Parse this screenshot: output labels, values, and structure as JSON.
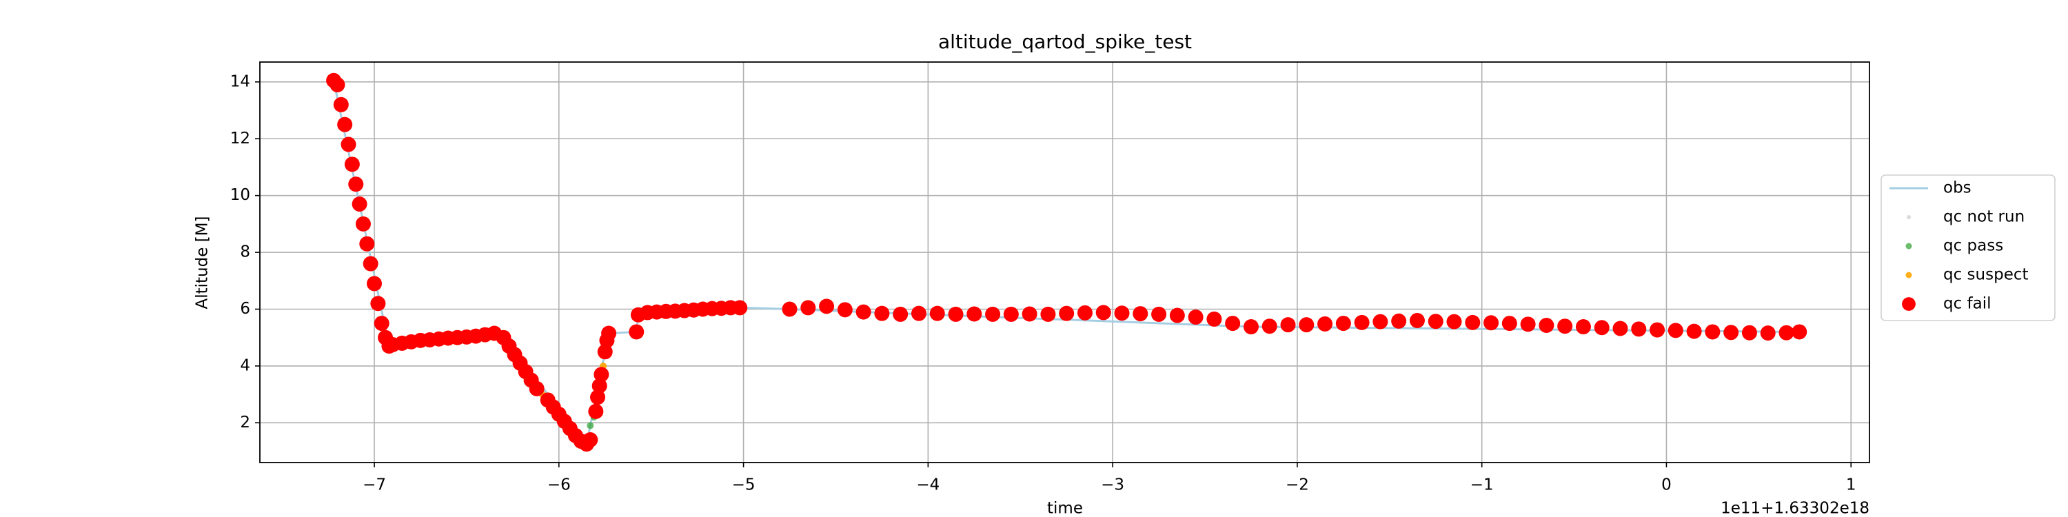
{
  "chart_data": {
    "type": "scatter",
    "title": "altitude_qartod_spike_test",
    "x_label": "time",
    "y_label": "Altitude [M]",
    "x_offset_text": "1e11+1.63302e18",
    "xlim": [
      -7.62,
      1.1
    ],
    "ylim": [
      0.6,
      14.7
    ],
    "xticks": [
      {
        "value": -7,
        "label": "−7"
      },
      {
        "value": -6,
        "label": "−6"
      },
      {
        "value": -5,
        "label": "−5"
      },
      {
        "value": -4,
        "label": "−4"
      },
      {
        "value": -3,
        "label": "−3"
      },
      {
        "value": -2,
        "label": "−2"
      },
      {
        "value": -1,
        "label": "−1"
      },
      0,
      1
    ],
    "yticks": [
      2,
      4,
      6,
      8,
      10,
      12,
      14
    ],
    "grid": true,
    "legend": "right",
    "series": [
      {
        "name": "obs",
        "color": "#a6cee3",
        "x": [
          -7.22,
          -6.92,
          -6.3,
          -5.85,
          -5.73,
          -5.58,
          -5.57,
          -5.0,
          -4.75,
          -2.25,
          0.72
        ],
        "values": [
          14.05,
          4.7,
          5.0,
          1.25,
          5.15,
          5.2,
          5.8,
          6.05,
          6.0,
          5.38,
          5.2
        ]
      },
      {
        "name": "qc not run",
        "color": "#cccccc",
        "x": [],
        "values": []
      },
      {
        "name": "qc pass",
        "color": "#2ca02c",
        "x": [
          -5.83,
          -5.81
        ],
        "values": [
          1.9,
          2.2
        ]
      },
      {
        "name": "qc suspect",
        "color": "#ffa500",
        "x": [
          -6.09,
          -5.76
        ],
        "values": [
          3.0,
          4.0
        ]
      },
      {
        "name": "qc fail",
        "color": "#ff0000",
        "x": [
          -7.22,
          -7.2,
          -7.18,
          -7.16,
          -7.14,
          -7.12,
          -7.1,
          -7.08,
          -7.06,
          -7.04,
          -7.02,
          -7.0,
          -6.98,
          -6.96,
          -6.94,
          -6.92,
          -6.9,
          -6.85,
          -6.8,
          -6.75,
          -6.7,
          -6.65,
          -6.6,
          -6.55,
          -6.5,
          -6.45,
          -6.4,
          -6.35,
          -6.3,
          -6.27,
          -6.24,
          -6.21,
          -6.18,
          -6.15,
          -6.12,
          -6.06,
          -6.03,
          -6.0,
          -5.97,
          -5.94,
          -5.91,
          -5.88,
          -5.85,
          -5.83,
          -5.8,
          -5.79,
          -5.78,
          -5.77,
          -5.75,
          -5.74,
          -5.73,
          -5.58,
          -5.57,
          -5.52,
          -5.47,
          -5.42,
          -5.37,
          -5.32,
          -5.27,
          -5.22,
          -5.17,
          -5.12,
          -5.07,
          -5.02,
          -4.75,
          -4.65,
          -4.55,
          -4.45,
          -4.35,
          -4.25,
          -4.15,
          -4.05,
          -3.95,
          -3.85,
          -3.75,
          -3.65,
          -3.55,
          -3.45,
          -3.35,
          -3.25,
          -3.15,
          -3.05,
          -2.95,
          -2.85,
          -2.75,
          -2.65,
          -2.55,
          -2.45,
          -2.35,
          -2.25,
          -2.15,
          -2.05,
          -1.95,
          -1.85,
          -1.75,
          -1.65,
          -1.55,
          -1.45,
          -1.35,
          -1.25,
          -1.15,
          -1.05,
          -0.95,
          -0.85,
          -0.75,
          -0.65,
          -0.55,
          -0.45,
          -0.35,
          -0.25,
          -0.15,
          -0.05,
          0.05,
          0.15,
          0.25,
          0.35,
          0.45,
          0.55,
          0.65,
          0.72
        ],
        "values": [
          14.05,
          13.9,
          13.2,
          12.5,
          11.8,
          11.1,
          10.4,
          9.7,
          9.0,
          8.3,
          7.6,
          6.9,
          6.2,
          5.5,
          5.0,
          4.7,
          4.75,
          4.8,
          4.85,
          4.9,
          4.92,
          4.95,
          4.98,
          5.0,
          5.02,
          5.05,
          5.1,
          5.15,
          5.0,
          4.7,
          4.4,
          4.1,
          3.8,
          3.5,
          3.2,
          2.8,
          2.55,
          2.3,
          2.05,
          1.8,
          1.55,
          1.35,
          1.25,
          1.4,
          2.4,
          2.9,
          3.3,
          3.7,
          4.5,
          4.9,
          5.15,
          5.2,
          5.8,
          5.88,
          5.9,
          5.92,
          5.93,
          5.95,
          5.97,
          6.0,
          6.02,
          6.03,
          6.05,
          6.05,
          6.0,
          6.05,
          6.1,
          5.98,
          5.9,
          5.85,
          5.82,
          5.85,
          5.85,
          5.82,
          5.83,
          5.82,
          5.82,
          5.83,
          5.82,
          5.85,
          5.87,
          5.88,
          5.86,
          5.84,
          5.82,
          5.78,
          5.72,
          5.65,
          5.5,
          5.38,
          5.4,
          5.45,
          5.45,
          5.48,
          5.5,
          5.53,
          5.56,
          5.58,
          5.6,
          5.57,
          5.56,
          5.53,
          5.52,
          5.5,
          5.47,
          5.43,
          5.4,
          5.38,
          5.35,
          5.32,
          5.3,
          5.27,
          5.25,
          5.22,
          5.2,
          5.18,
          5.17,
          5.16,
          5.17,
          5.2
        ]
      }
    ]
  }
}
